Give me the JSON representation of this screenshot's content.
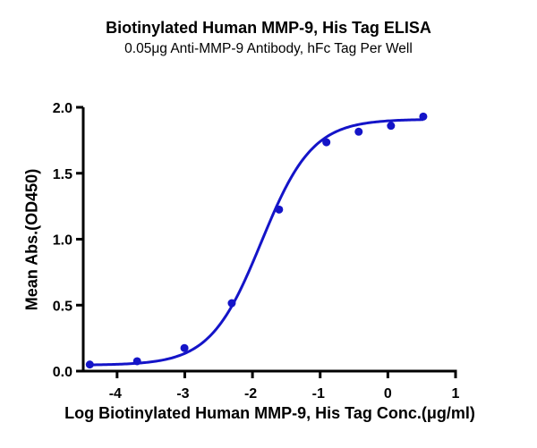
{
  "chart_data": {
    "type": "line",
    "title": "Biotinylated Human MMP-9, His Tag ELISA",
    "subtitle": "0.05μg Anti-MMP-9 Antibody, hFc Tag Per Well",
    "xlabel": "Log Biotinylated Human MMP-9, His Tag Conc.(μg/ml)",
    "ylabel": "Mean Abs.(OD450)",
    "xlim": [
      -4.5,
      1
    ],
    "ylim": [
      0,
      2.0
    ],
    "xticks": [
      "-4",
      "-3",
      "-2",
      "-1",
      "0",
      "1"
    ],
    "xtick_values": [
      -4,
      -3,
      -2,
      -1,
      0,
      1
    ],
    "yticks": [
      "0.0",
      "0.5",
      "1.0",
      "1.5",
      "2.0"
    ],
    "ytick_values": [
      0,
      0.5,
      1.0,
      1.5,
      2.0
    ],
    "grid": false,
    "legend": null,
    "color": "#1414C8",
    "series": [
      {
        "name": "Biotinylated Human MMP-9, His Tag",
        "marker": "circle",
        "x": [
          -4.403,
          -3.704,
          -3.005,
          -2.306,
          -1.607,
          -0.908,
          -0.431,
          0.046,
          0.523
        ],
        "y": [
          0.05,
          0.075,
          0.175,
          0.515,
          1.225,
          1.735,
          1.815,
          1.86,
          1.93
        ]
      }
    ],
    "fit": {
      "type": "4PL",
      "bottom": 0.045,
      "top": 1.91,
      "logEC50": -1.87,
      "hill": 1.15,
      "x_range": [
        -4.403,
        0.523
      ]
    }
  }
}
